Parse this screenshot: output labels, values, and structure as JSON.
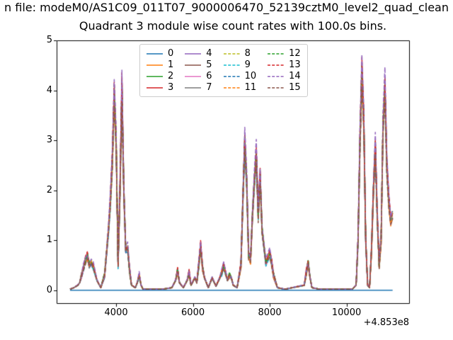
{
  "chart_data": {
    "type": "line",
    "suptitle": "n file: modeM0/AS1C09_011T07_9000006470_52139cztM0_level2_quad_clean",
    "title": "Quadrant 3 module wise count rates with 100.0s bins.",
    "xlabel": "",
    "ylabel": "",
    "x_offset_label": "+4.853e8",
    "xlim": [
      2450,
      11630
    ],
    "ylim": [
      -0.26,
      5
    ],
    "xticks": [
      4000,
      6000,
      8000,
      10000
    ],
    "yticks": [
      0,
      1,
      2,
      3,
      4,
      5
    ],
    "grid": false,
    "legend_position": "upper center",
    "y_model": "series value at each x = base_values * scale (module count-rate curves nearly overlap); series 0 is flat at 0",
    "x": [
      2800,
      2900,
      3000,
      3050,
      3100,
      3150,
      3200,
      3250,
      3300,
      3350,
      3400,
      3500,
      3600,
      3700,
      3800,
      3850,
      3900,
      3950,
      4000,
      4050,
      4100,
      4150,
      4200,
      4250,
      4300,
      4350,
      4400,
      4500,
      4550,
      4600,
      4650,
      4700,
      4900,
      5200,
      5450,
      5550,
      5600,
      5650,
      5750,
      5850,
      5900,
      5950,
      6050,
      6100,
      6150,
      6200,
      6250,
      6300,
      6400,
      6450,
      6500,
      6600,
      6700,
      6750,
      6800,
      6900,
      6950,
      7000,
      7050,
      7150,
      7250,
      7300,
      7350,
      7400,
      7450,
      7500,
      7550,
      7600,
      7650,
      7700,
      7750,
      7800,
      7900,
      8000,
      8050,
      8100,
      8200,
      8400,
      8900,
      8950,
      9000,
      9050,
      9100,
      9300,
      9800,
      10150,
      10250,
      10300,
      10350,
      10400,
      10450,
      10500,
      10550,
      10600,
      10650,
      10700,
      10750,
      10800,
      10850,
      10900,
      10950,
      11000,
      11050,
      11100,
      11150,
      11200
    ],
    "base_values": [
      0.02,
      0.05,
      0.1,
      0.15,
      0.3,
      0.45,
      0.6,
      0.7,
      0.5,
      0.55,
      0.5,
      0.2,
      0.05,
      0.3,
      1.2,
      1.8,
      2.6,
      3.95,
      3.0,
      0.5,
      2.0,
      4.1,
      2.0,
      0.8,
      0.85,
      0.4,
      0.1,
      0.05,
      0.15,
      0.3,
      0.1,
      0.02,
      0.02,
      0.02,
      0.05,
      0.2,
      0.4,
      0.15,
      0.05,
      0.2,
      0.35,
      0.1,
      0.25,
      0.15,
      0.5,
      0.9,
      0.45,
      0.25,
      0.05,
      0.15,
      0.25,
      0.08,
      0.25,
      0.35,
      0.5,
      0.2,
      0.3,
      0.25,
      0.1,
      0.05,
      0.5,
      1.8,
      3.0,
      2.2,
      0.7,
      0.6,
      1.5,
      2.2,
      2.75,
      1.5,
      2.3,
      1.2,
      0.55,
      0.75,
      0.55,
      0.3,
      0.05,
      0.02,
      0.1,
      0.35,
      0.55,
      0.25,
      0.05,
      0.02,
      0.02,
      0.02,
      0.1,
      1.0,
      3.0,
      4.4,
      3.4,
      1.0,
      0.1,
      0.05,
      0.8,
      2.0,
      2.9,
      1.5,
      0.5,
      1.0,
      3.3,
      4.1,
      2.5,
      1.8,
      1.4,
      1.5
    ],
    "series": [
      {
        "name": "0",
        "color": "#1f77b4",
        "dashed": false,
        "flat": true,
        "scale": 0
      },
      {
        "name": "1",
        "color": "#ff7f0e",
        "dashed": false,
        "flat": false,
        "scale": 0.95
      },
      {
        "name": "2",
        "color": "#2ca02c",
        "dashed": false,
        "flat": false,
        "scale": 1.0
      },
      {
        "name": "3",
        "color": "#d62728",
        "dashed": false,
        "flat": false,
        "scale": 1.02
      },
      {
        "name": "4",
        "color": "#9467bd",
        "dashed": false,
        "flat": false,
        "scale": 0.97
      },
      {
        "name": "5",
        "color": "#8c564b",
        "dashed": false,
        "flat": false,
        "scale": 0.99
      },
      {
        "name": "6",
        "color": "#e377c2",
        "dashed": false,
        "flat": false,
        "scale": 0.96
      },
      {
        "name": "7",
        "color": "#7f7f7f",
        "dashed": false,
        "flat": false,
        "scale": 0.98
      },
      {
        "name": "8",
        "color": "#bcbd22",
        "dashed": true,
        "flat": false,
        "scale": 1.01
      },
      {
        "name": "9",
        "color": "#17becf",
        "dashed": true,
        "flat": false,
        "scale": 0.94
      },
      {
        "name": "10",
        "color": "#1f77b4",
        "dashed": true,
        "flat": false,
        "scale": 1.0
      },
      {
        "name": "11",
        "color": "#ff7f0e",
        "dashed": true,
        "flat": false,
        "scale": 0.97
      },
      {
        "name": "12",
        "color": "#2ca02c",
        "dashed": true,
        "flat": false,
        "scale": 1.03
      },
      {
        "name": "13",
        "color": "#d62728",
        "dashed": true,
        "flat": false,
        "scale": 1.05
      },
      {
        "name": "14",
        "color": "#9467bd",
        "dashed": true,
        "flat": false,
        "scale": 1.08
      },
      {
        "name": "15",
        "color": "#8c564b",
        "dashed": true,
        "flat": false,
        "scale": 0.93
      }
    ]
  }
}
